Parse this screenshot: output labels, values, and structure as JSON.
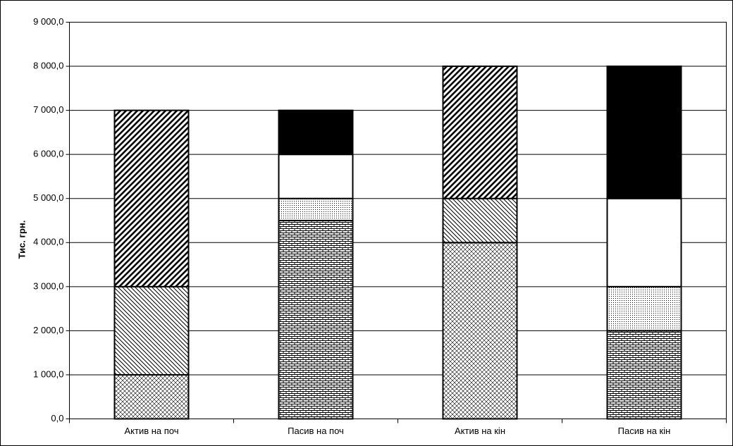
{
  "chart_data": {
    "type": "stacked-bar",
    "y_label": "Тис. грн.",
    "categories": [
      "Актив на поч",
      "Пасив на поч",
      "Актив на кін",
      "Пасив на кін"
    ],
    "series": [
      {
        "pattern": "crosshatch",
        "color": "#000000",
        "values": [
          1000,
          null,
          4000,
          null
        ]
      },
      {
        "pattern": "diagonal-thin",
        "color": "#000000",
        "values": [
          2000,
          null,
          1000,
          null
        ]
      },
      {
        "pattern": "diagonal-thick",
        "color": "#000000",
        "values": [
          4000,
          null,
          3000,
          null
        ]
      },
      {
        "pattern": "brick",
        "color": "#000000",
        "values": [
          null,
          4500,
          null,
          2000
        ]
      },
      {
        "pattern": "dots",
        "color": "#000000",
        "values": [
          null,
          500,
          null,
          1000
        ]
      },
      {
        "pattern": "solid",
        "color": "#ffffff",
        "values": [
          null,
          1000,
          null,
          2000
        ]
      },
      {
        "pattern": "solid",
        "color": "#000000",
        "values": [
          null,
          1000,
          null,
          3000
        ]
      }
    ],
    "ylim": [
      0,
      9000
    ],
    "yticks": [
      {
        "value": 0,
        "label": "0,0"
      },
      {
        "value": 1000,
        "label": "1 000,0"
      },
      {
        "value": 2000,
        "label": "2 000,0"
      },
      {
        "value": 3000,
        "label": "3 000,0"
      },
      {
        "value": 4000,
        "label": "4 000,0"
      },
      {
        "value": 5000,
        "label": "5 000,0"
      },
      {
        "value": 6000,
        "label": "6 000,0"
      },
      {
        "value": 7000,
        "label": "7 000,0"
      },
      {
        "value": 8000,
        "label": "8 000,0"
      },
      {
        "value": 9000,
        "label": "9 000,0"
      }
    ],
    "grid": true
  }
}
